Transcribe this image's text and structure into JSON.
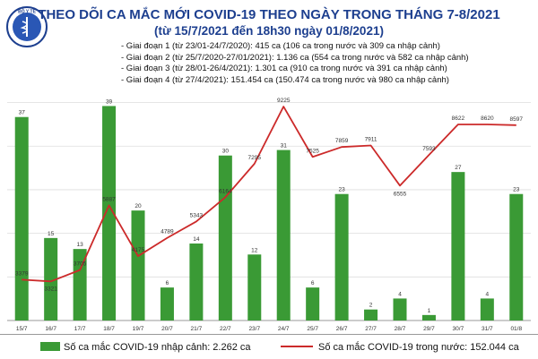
{
  "header": {
    "title": "THEO DÕI CA MẮC MỚI COVID-19 THEO NGÀY TRONG THÁNG 7-8/2021",
    "subtitle": "(từ 15/7/2021 đến 18h30 ngày 01/8/2021)",
    "logo_text": "BỘ Y TẾ"
  },
  "notes": [
    "- Giai đoạn 1 (từ 23/01-24/7/2020): 415 ca (106 ca trong nước và 309 ca nhập cảnh)",
    "- Giai đoạn 2 (từ 25/7/2020-27/01/2021): 1.136 ca (554 ca trong nước và 582 ca nhập cảnh)",
    "- Giai đoạn 3 (từ 28/01-26/4/2021): 1.301 ca (910 ca trong nước và 391 ca nhập cảnh)",
    "- Giai đoạn 4 (từ 27/4/2021): 151.454 ca (150.474 ca trong nước và 980 ca nhập cảnh)"
  ],
  "legend": {
    "bars": "Số ca mắc COVID-19 nhập cảnh: 2.262 ca",
    "line": "Số ca mắc COVID-19 trong nước: 152.044 ca"
  },
  "colors": {
    "bar": "#3a9a35",
    "line": "#cc2a2a",
    "title": "#1d3f8f"
  },
  "chart_data": {
    "type": "bar",
    "title": "THEO DÕI CA MẮC MỚI COVID-19 THEO NGÀY TRONG THÁNG 7-8/2021",
    "categories": [
      "15/7",
      "16/7",
      "17/7",
      "18/7",
      "19/7",
      "20/7",
      "21/7",
      "22/7",
      "23/7",
      "24/7",
      "25/7",
      "26/7",
      "27/7",
      "28/7",
      "29/7",
      "30/7",
      "31/7",
      "01/8"
    ],
    "series": [
      {
        "name": "Số ca mắc COVID-19 nhập cảnh",
        "type": "bar",
        "values": [
          37,
          15,
          13,
          39,
          20,
          6,
          14,
          30,
          12,
          31,
          6,
          23,
          2,
          4,
          1,
          27,
          4,
          23
        ],
        "ylim": [
          0,
          42
        ]
      },
      {
        "name": "Số ca mắc COVID-19 trong nước",
        "type": "line",
        "values": [
          3379,
          3321,
          3705,
          5887,
          4175,
          4789,
          5343,
          6164,
          7295,
          9225,
          7525,
          7859,
          7911,
          6555,
          7593,
          8622,
          8620,
          8597
        ],
        "ylim": [
          2000,
          9800
        ]
      }
    ],
    "bar_labels": [
      "37",
      "15",
      "13",
      "39",
      "20",
      "6",
      "14",
      "30",
      "12",
      "31",
      "6",
      "23",
      "2",
      "4",
      "1",
      "27",
      "4",
      "23"
    ],
    "line_labels": [
      "3379",
      "3321",
      "3705",
      "5887",
      "4175",
      "4789",
      "5343",
      "6164",
      "7295",
      "9225",
      "7525",
      "7859",
      "7911",
      "6555",
      "7593",
      "8622",
      "8620",
      "8597"
    ],
    "xlabel": "",
    "ylabel": ""
  }
}
